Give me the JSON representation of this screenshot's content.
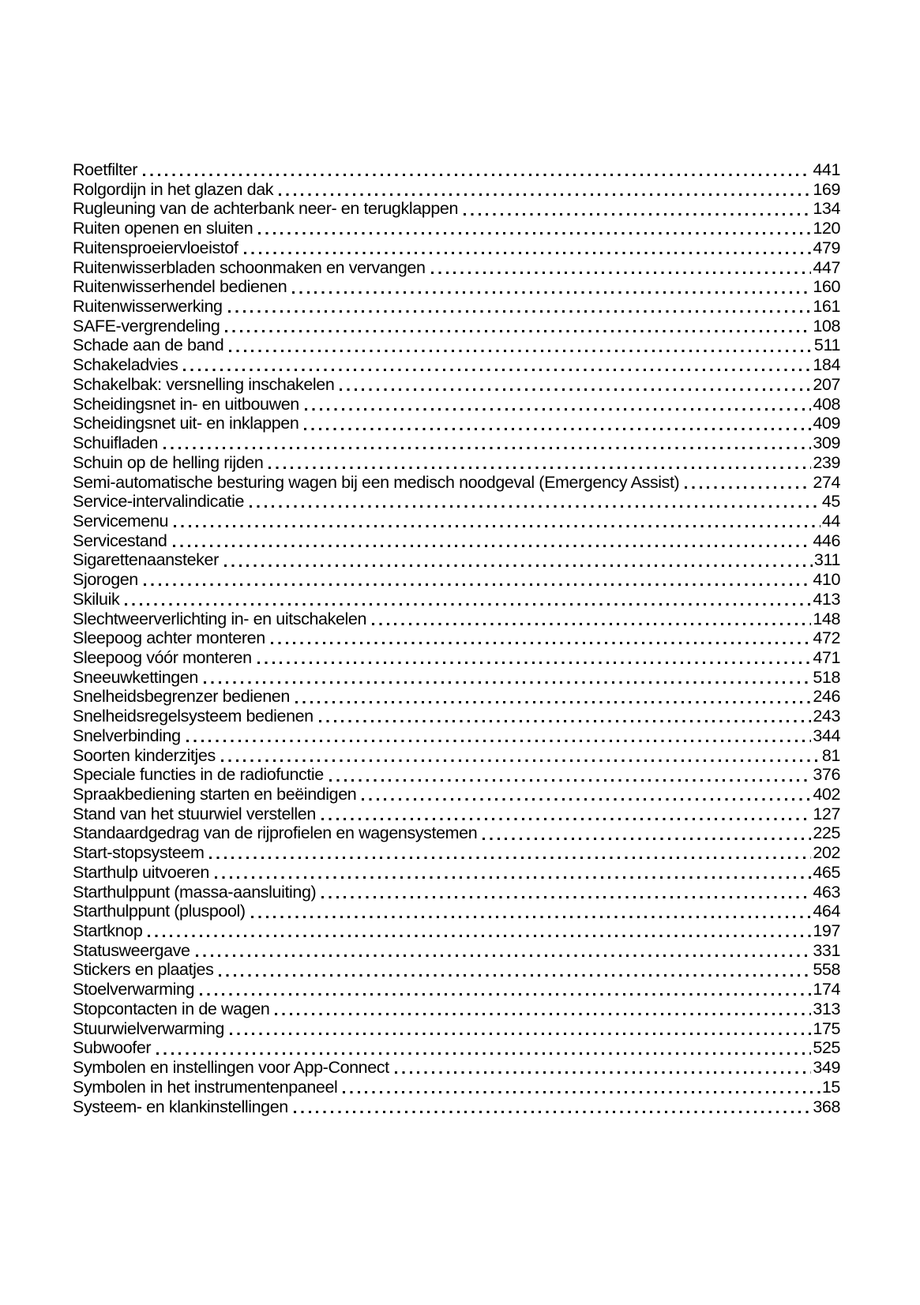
{
  "page": {
    "background_color": "#ffffff",
    "text_color": "#000000"
  },
  "index": {
    "entries": [
      {
        "label": "Roetfilter",
        "page": "441"
      },
      {
        "label": "Rolgordijn in het glazen dak",
        "page": "169"
      },
      {
        "label": "Rugleuning van de achterbank neer- en terugklappen",
        "page": "134"
      },
      {
        "label": "Ruiten openen en sluiten",
        "page": "120"
      },
      {
        "label": "Ruitensproeiervloeistof",
        "page": "479"
      },
      {
        "label": "Ruitenwisserbladen schoonmaken en vervangen",
        "page": "447"
      },
      {
        "label": "Ruitenwisserhendel bedienen",
        "page": "160"
      },
      {
        "label": "Ruitenwisserwerking",
        "page": "161"
      },
      {
        "label": "SAFE-vergrendeling",
        "page": "108"
      },
      {
        "label": "Schade aan de band",
        "page": "511"
      },
      {
        "label": "Schakeladvies",
        "page": "184"
      },
      {
        "label": "Schakelbak: versnelling inschakelen",
        "page": "207"
      },
      {
        "label": "Scheidingsnet in- en uitbouwen",
        "page": "408"
      },
      {
        "label": "Scheidingsnet uit- en inklappen",
        "page": "409"
      },
      {
        "label": "Schuifladen",
        "page": "309"
      },
      {
        "label": "Schuin op de helling rijden",
        "page": "239"
      },
      {
        "label": "Semi-automatische besturing wagen bij een medisch noodgeval (Emergency Assist)",
        "page": "274"
      },
      {
        "label": "Service-intervalindicatie",
        "page": "45"
      },
      {
        "label": "Servicemenu",
        "page": "44"
      },
      {
        "label": "Servicestand",
        "page": "446"
      },
      {
        "label": "Sigarettenaansteker",
        "page": "311"
      },
      {
        "label": "Sjorogen",
        "page": "410"
      },
      {
        "label": "Skiluik",
        "page": "413"
      },
      {
        "label": "Slechtweerverlichting in- en uitschakelen",
        "page": "148"
      },
      {
        "label": "Sleepoog achter monteren",
        "page": "472"
      },
      {
        "label": "Sleepoog vóór monteren",
        "page": "471"
      },
      {
        "label": "Sneeuwkettingen",
        "page": "518"
      },
      {
        "label": "Snelheidsbegrenzer bedienen",
        "page": "246"
      },
      {
        "label": "Snelheidsregelsysteem bedienen",
        "page": "243"
      },
      {
        "label": "Snelverbinding",
        "page": "344"
      },
      {
        "label": "Soorten kinderzitjes",
        "page": "81"
      },
      {
        "label": "Speciale functies in de radiofunctie",
        "page": "376"
      },
      {
        "label": "Spraakbediening starten en beëindigen",
        "page": "402"
      },
      {
        "label": "Stand van het stuurwiel verstellen",
        "page": "127"
      },
      {
        "label": "Standaardgedrag van de rijprofielen en wagensystemen",
        "page": "225"
      },
      {
        "label": "Start-stopsysteem",
        "page": "202"
      },
      {
        "label": "Starthulp uitvoeren",
        "page": "465"
      },
      {
        "label": "Starthulppunt (massa-aansluiting)",
        "page": "463"
      },
      {
        "label": "Starthulppunt (pluspool)",
        "page": "464"
      },
      {
        "label": "Startknop",
        "page": "197"
      },
      {
        "label": "Statusweergave",
        "page": "331"
      },
      {
        "label": "Stickers en plaatjes",
        "page": "558"
      },
      {
        "label": "Stoelverwarming",
        "page": "174"
      },
      {
        "label": "Stopcontacten in de wagen",
        "page": "313"
      },
      {
        "label": "Stuurwielverwarming",
        "page": "175"
      },
      {
        "label": "Subwoofer",
        "page": "525"
      },
      {
        "label": "Symbolen en instellingen voor App-Connect",
        "page": "349"
      },
      {
        "label": "Symbolen in het instrumentenpaneel",
        "page": "15"
      },
      {
        "label": "Systeem- en klankinstellingen",
        "page": "368"
      }
    ]
  }
}
